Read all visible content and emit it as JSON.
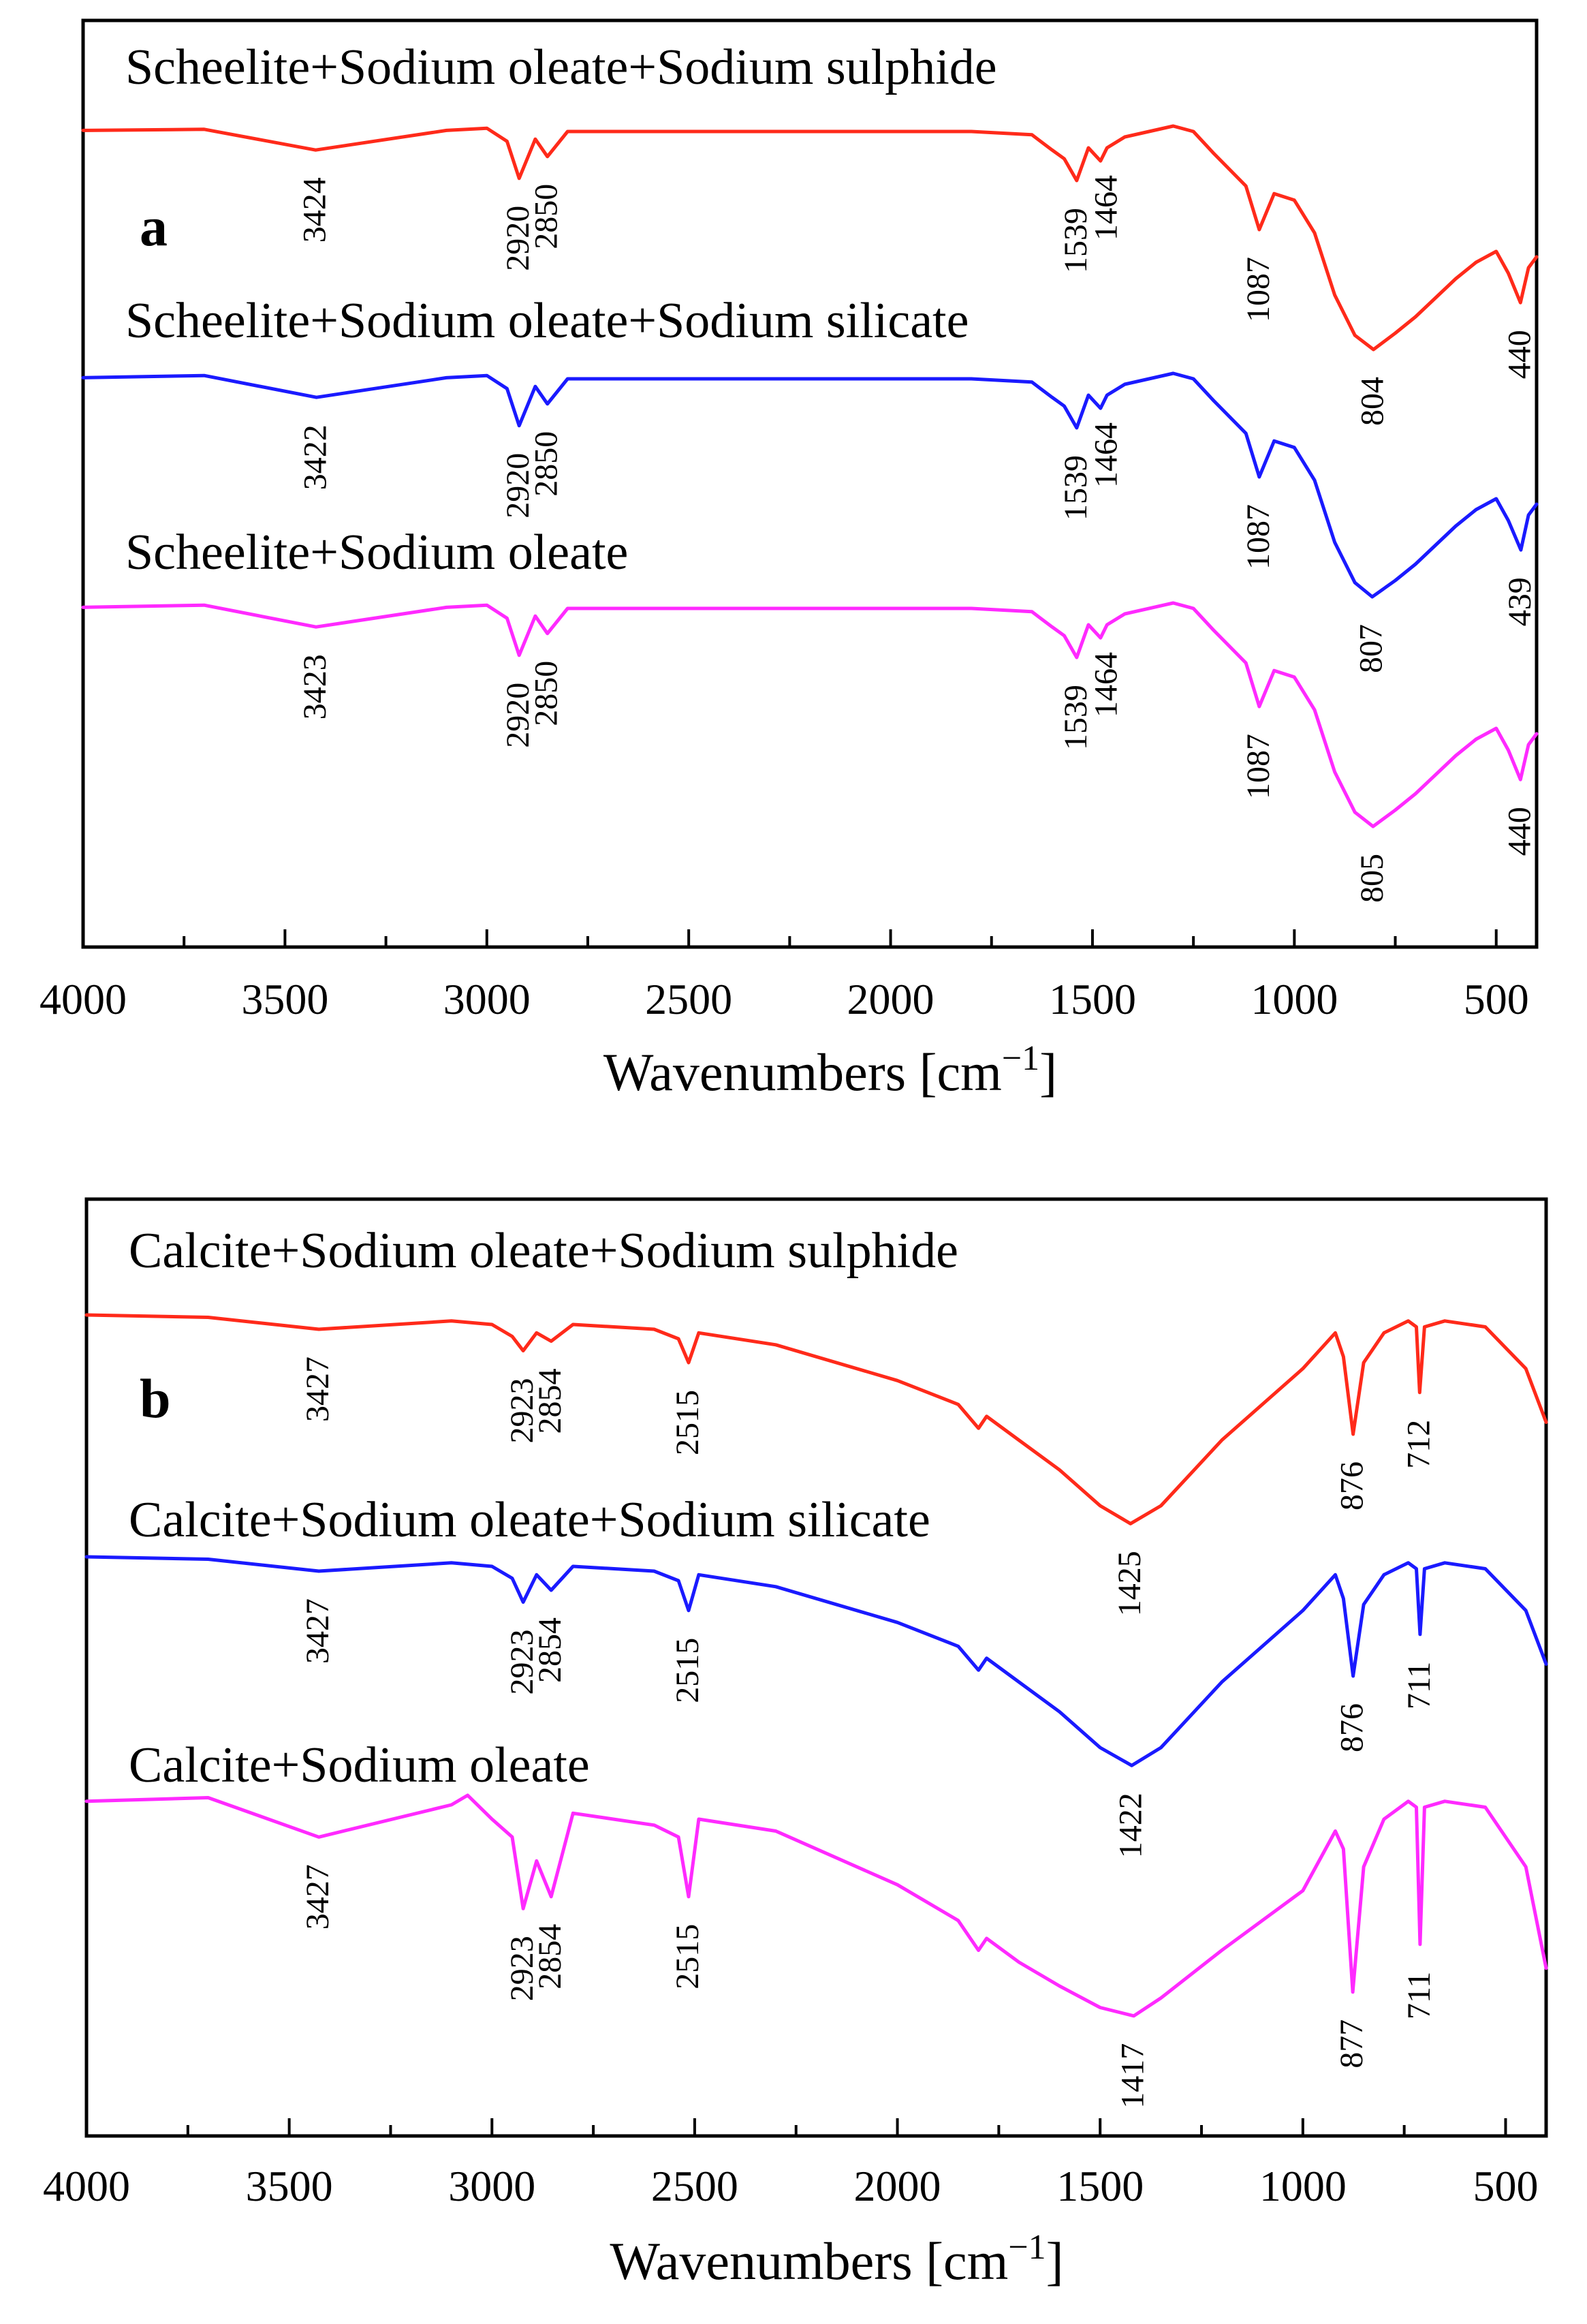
{
  "chart_data": [
    {
      "type": "line",
      "panel": "a",
      "xlabel": "Wavenumbers [cm",
      "xlabel_sup": "−1",
      "xlabel_end": "]",
      "xlim": [
        4000,
        400
      ],
      "xticks": [
        4000,
        3500,
        3000,
        2500,
        2000,
        1500,
        1000,
        500
      ],
      "ylabel": "",
      "series": [
        {
          "name": "Scheelite+Sodium oleate+Sodium sulphide",
          "color": "#ff2a1a",
          "peaks": [
            "3424",
            "2920",
            "2850",
            "1539",
            "1464",
            "1087",
            "804",
            "440"
          ],
          "x": [
            4000,
            3700,
            3424,
            3100,
            3000,
            2950,
            2920,
            2880,
            2850,
            2800,
            1800,
            1650,
            1600,
            1570,
            1539,
            1510,
            1480,
            1464,
            1420,
            1300,
            1250,
            1200,
            1120,
            1087,
            1050,
            1000,
            950,
            900,
            850,
            804,
            750,
            700,
            600,
            550,
            500,
            470,
            440,
            420,
            400
          ],
          "y": [
            0.04,
            0.03,
            0.22,
            0.04,
            0.02,
            0.14,
            0.48,
            0.12,
            0.28,
            0.05,
            0.05,
            0.08,
            0.22,
            0.3,
            0.5,
            0.2,
            0.32,
            0.2,
            0.1,
            0.0,
            0.05,
            0.25,
            0.55,
            0.95,
            0.62,
            0.68,
            0.98,
            1.55,
            1.92,
            2.05,
            1.9,
            1.75,
            1.4,
            1.25,
            1.15,
            1.35,
            1.62,
            1.3,
            1.2
          ]
        },
        {
          "name": "Scheelite+Sodium oleate+Sodium silicate",
          "color": "#1a1aff",
          "peaks": [
            "3422",
            "2920",
            "2850",
            "1539",
            "1464",
            "1087",
            "807",
            "439"
          ],
          "x": [
            4000,
            3700,
            3422,
            3100,
            3000,
            2950,
            2920,
            2880,
            2850,
            2800,
            1800,
            1650,
            1600,
            1570,
            1539,
            1510,
            1480,
            1464,
            1420,
            1300,
            1250,
            1200,
            1120,
            1087,
            1050,
            1000,
            950,
            900,
            850,
            807,
            750,
            700,
            600,
            550,
            500,
            470,
            439,
            420,
            400
          ],
          "y": [
            0.04,
            0.02,
            0.22,
            0.04,
            0.02,
            0.14,
            0.48,
            0.12,
            0.28,
            0.05,
            0.05,
            0.08,
            0.22,
            0.3,
            0.5,
            0.2,
            0.32,
            0.2,
            0.1,
            0.0,
            0.05,
            0.25,
            0.55,
            0.95,
            0.62,
            0.68,
            0.98,
            1.55,
            1.92,
            2.05,
            1.9,
            1.75,
            1.4,
            1.25,
            1.15,
            1.35,
            1.62,
            1.3,
            1.2
          ]
        },
        {
          "name": "Scheelite+Sodium oleate",
          "color": "#ff2aff",
          "peaks": [
            "3423",
            "2920",
            "2850",
            "1539",
            "1464",
            "1087",
            "805",
            "440"
          ],
          "x": [
            4000,
            3700,
            3423,
            3100,
            3000,
            2950,
            2920,
            2880,
            2850,
            2800,
            1800,
            1650,
            1600,
            1570,
            1539,
            1510,
            1480,
            1464,
            1420,
            1300,
            1250,
            1200,
            1120,
            1087,
            1050,
            1000,
            950,
            900,
            850,
            805,
            750,
            700,
            600,
            550,
            500,
            470,
            440,
            420,
            400
          ],
          "y": [
            0.04,
            0.02,
            0.22,
            0.04,
            0.02,
            0.14,
            0.48,
            0.12,
            0.28,
            0.05,
            0.05,
            0.08,
            0.22,
            0.3,
            0.5,
            0.2,
            0.32,
            0.2,
            0.1,
            0.0,
            0.05,
            0.25,
            0.55,
            0.95,
            0.62,
            0.68,
            0.98,
            1.55,
            1.92,
            2.05,
            1.9,
            1.75,
            1.4,
            1.25,
            1.15,
            1.35,
            1.62,
            1.3,
            1.2
          ]
        }
      ]
    },
    {
      "type": "line",
      "panel": "b",
      "xlabel": "Wavenumbers [cm",
      "xlabel_sup": "−1",
      "xlabel_end": "]",
      "xlim": [
        4000,
        400
      ],
      "xticks": [
        4000,
        3500,
        3000,
        2500,
        2000,
        1500,
        1000,
        500
      ],
      "ylabel": "",
      "series": [
        {
          "name": "Calcite+Sodium oleate+Sodium sulphide",
          "color": "#ff2a1a",
          "peaks": [
            "3427",
            "2923",
            "2854",
            "2515",
            "1425",
            "876",
            "712"
          ],
          "x": [
            4000,
            3700,
            3427,
            3100,
            3000,
            2950,
            2923,
            2890,
            2854,
            2800,
            2600,
            2540,
            2515,
            2490,
            2300,
            2000,
            1850,
            1800,
            1780,
            1700,
            1600,
            1500,
            1425,
            1350,
            1200,
            1000,
            920,
            900,
            876,
            850,
            800,
            740,
            720,
            712,
            700,
            650,
            550,
            450,
            400
          ],
          "y": [
            0.0,
            0.02,
            0.12,
            0.05,
            0.08,
            0.18,
            0.3,
            0.15,
            0.22,
            0.08,
            0.12,
            0.2,
            0.4,
            0.15,
            0.25,
            0.55,
            0.75,
            0.95,
            0.85,
            1.05,
            1.3,
            1.6,
            1.75,
            1.6,
            1.05,
            0.45,
            0.15,
            0.35,
            1.0,
            0.4,
            0.15,
            0.05,
            0.1,
            0.65,
            0.1,
            0.05,
            0.1,
            0.45,
            0.9
          ]
        },
        {
          "name": "Calcite+Sodium oleate+Sodium silicate",
          "color": "#1a1aff",
          "peaks": [
            "3427",
            "2923",
            "2854",
            "2515",
            "1422",
            "876",
            "711"
          ],
          "x": [
            4000,
            3700,
            3427,
            3100,
            3000,
            2950,
            2923,
            2890,
            2854,
            2800,
            2600,
            2540,
            2515,
            2490,
            2300,
            2000,
            1850,
            1800,
            1780,
            1700,
            1600,
            1500,
            1422,
            1350,
            1200,
            1000,
            920,
            900,
            876,
            850,
            800,
            740,
            720,
            711,
            700,
            650,
            550,
            450,
            400
          ],
          "y": [
            0.0,
            0.02,
            0.12,
            0.05,
            0.08,
            0.18,
            0.38,
            0.15,
            0.28,
            0.08,
            0.12,
            0.2,
            0.45,
            0.15,
            0.25,
            0.55,
            0.75,
            0.95,
            0.85,
            1.05,
            1.3,
            1.6,
            1.75,
            1.6,
            1.05,
            0.45,
            0.15,
            0.35,
            1.0,
            0.4,
            0.15,
            0.05,
            0.1,
            0.65,
            0.1,
            0.05,
            0.1,
            0.45,
            0.9
          ]
        },
        {
          "name": "Calcite+Sodium oleate",
          "color": "#ff2aff",
          "peaks": [
            "3427",
            "2923",
            "2854",
            "2515",
            "1417",
            "877",
            "711"
          ],
          "x": [
            4000,
            3700,
            3427,
            3100,
            3060,
            3000,
            2950,
            2923,
            2890,
            2854,
            2800,
            2600,
            2540,
            2515,
            2490,
            2300,
            2000,
            1850,
            1800,
            1780,
            1700,
            1600,
            1500,
            1417,
            1350,
            1200,
            1000,
            920,
            900,
            877,
            850,
            800,
            740,
            720,
            711,
            700,
            650,
            550,
            450,
            400
          ],
          "y": [
            0.05,
            0.02,
            0.35,
            0.08,
            0.0,
            0.2,
            0.35,
            0.95,
            0.55,
            0.85,
            0.15,
            0.25,
            0.35,
            0.85,
            0.2,
            0.3,
            0.75,
            1.05,
            1.3,
            1.2,
            1.4,
            1.6,
            1.78,
            1.85,
            1.7,
            1.3,
            0.8,
            0.3,
            0.45,
            1.65,
            0.6,
            0.2,
            0.05,
            0.1,
            1.25,
            0.1,
            0.05,
            0.1,
            0.6,
            1.45
          ]
        }
      ]
    }
  ]
}
